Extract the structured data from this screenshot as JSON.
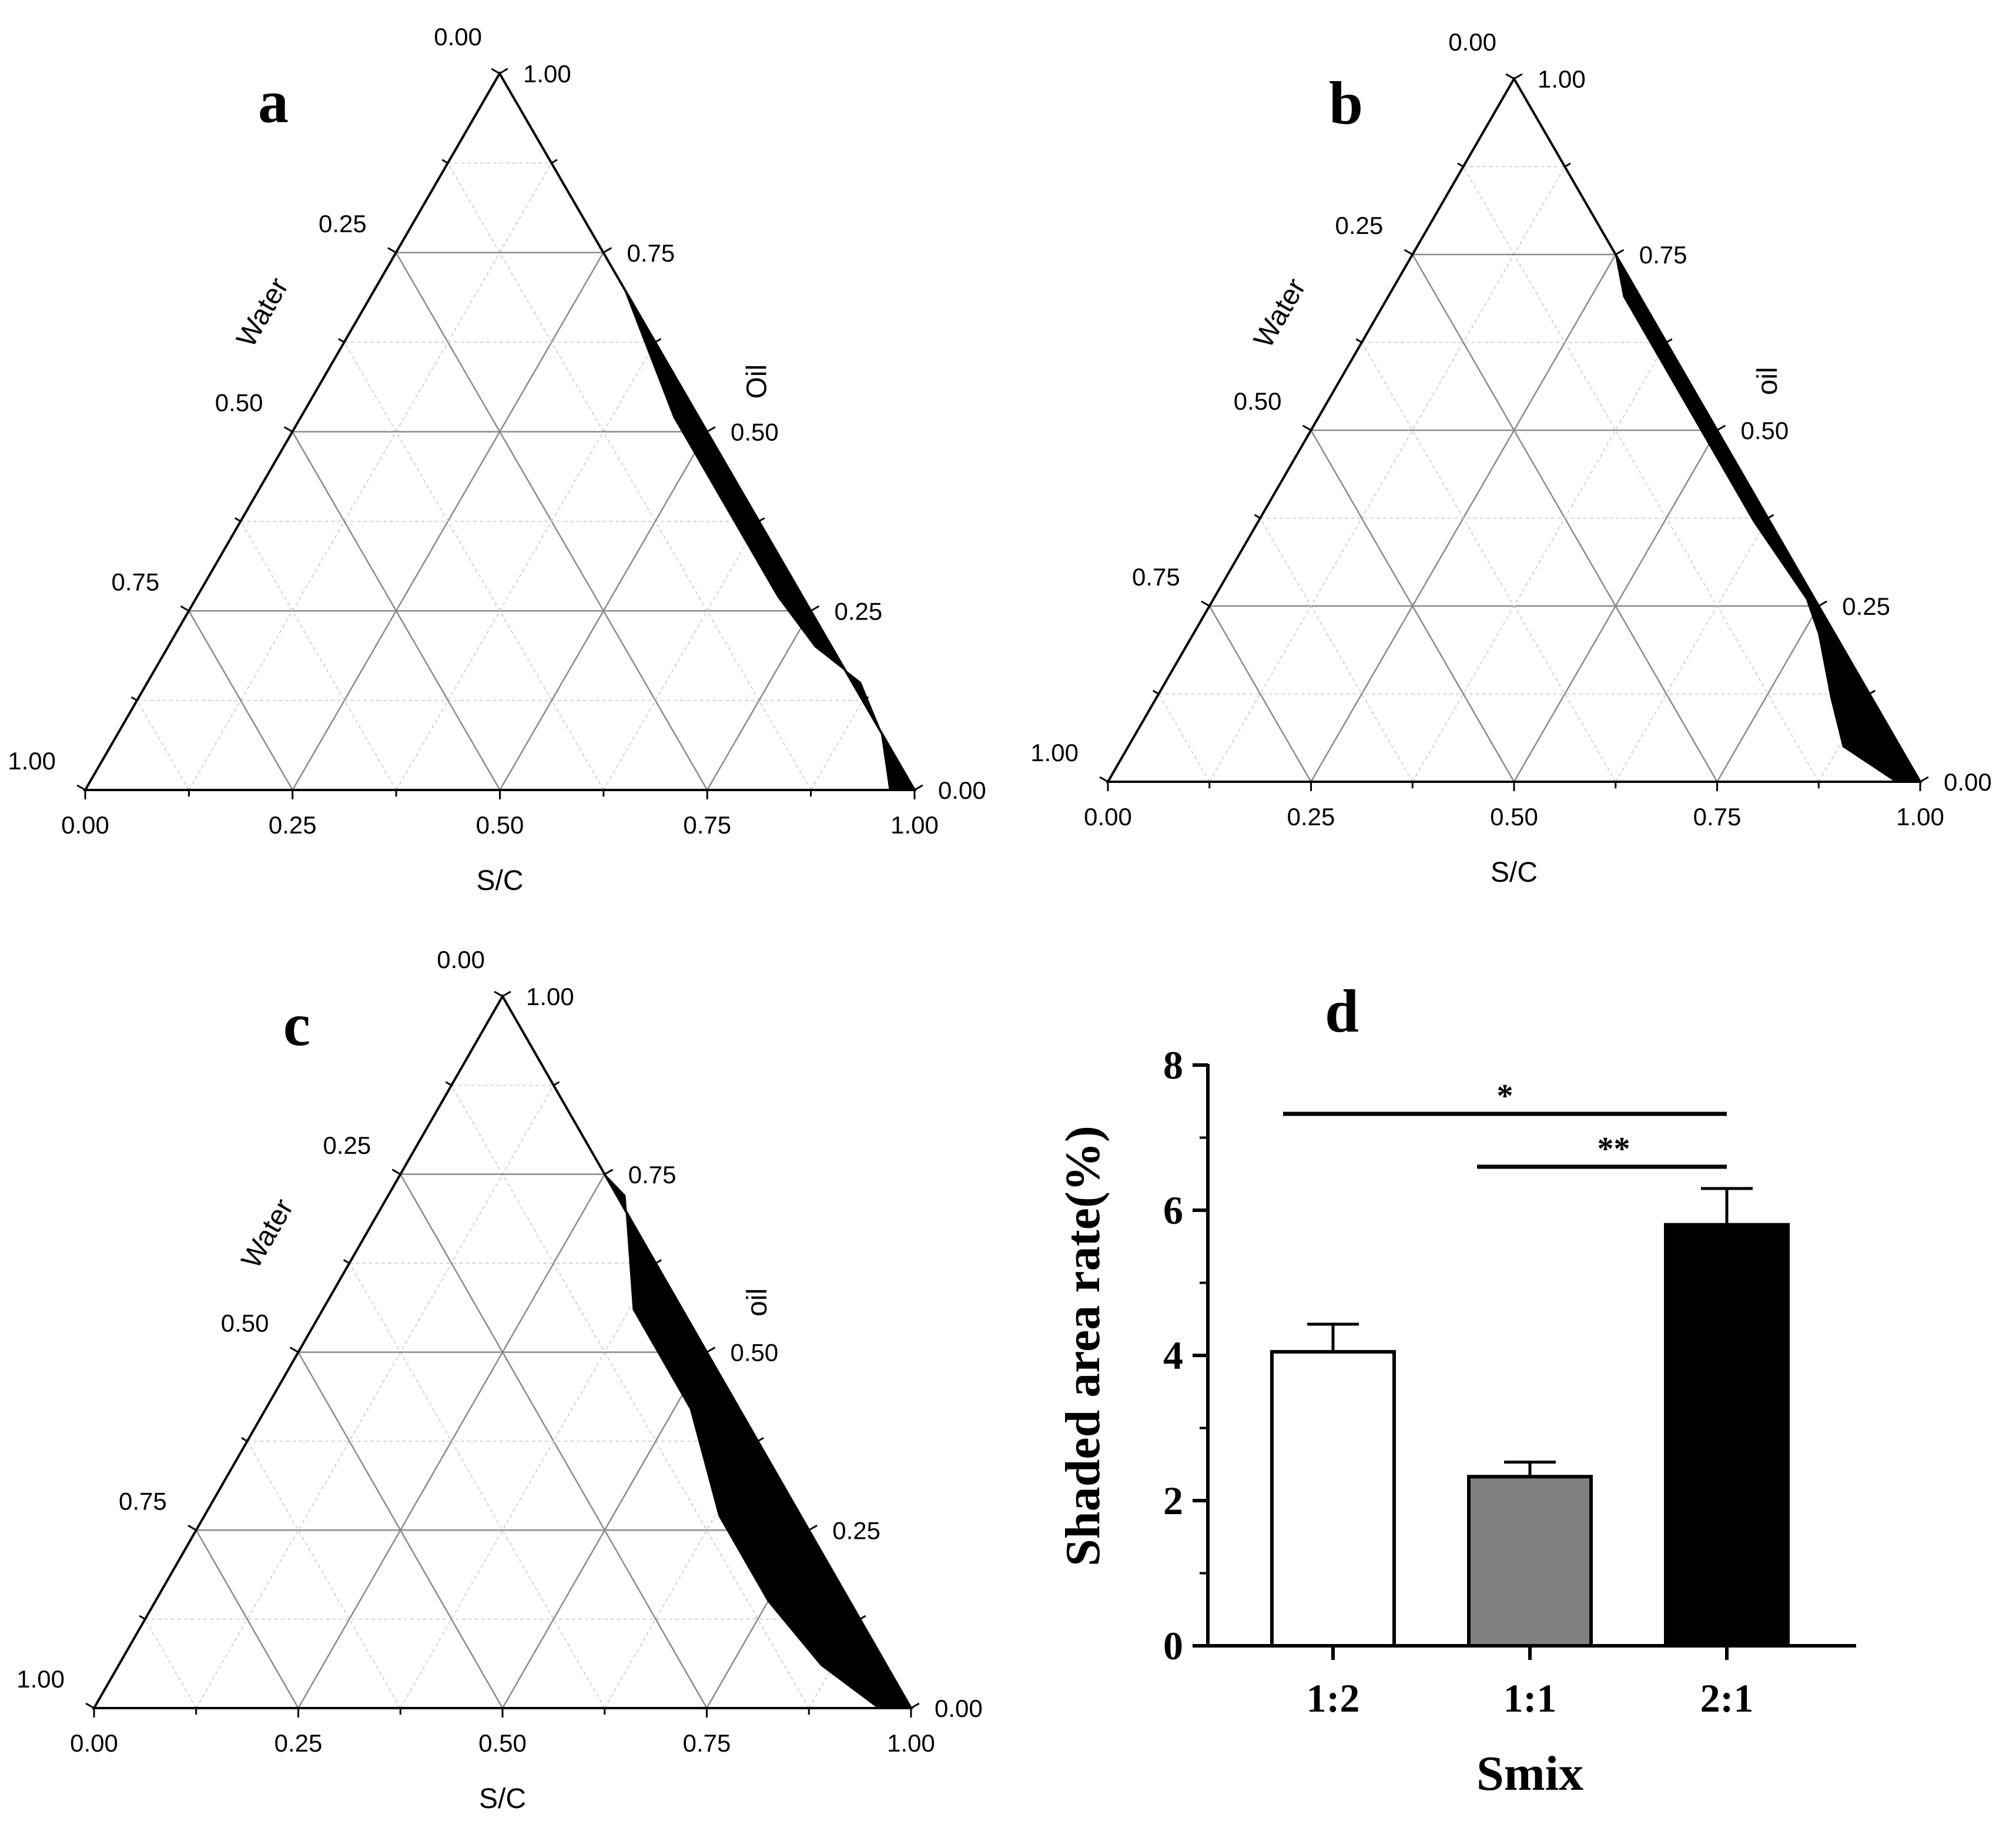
{
  "chart_data": [
    {
      "type": "ternary",
      "panel": "a",
      "axes": {
        "bottom": "S/C",
        "left": "Water",
        "right": "Oil"
      },
      "ticks": [
        "0.00",
        "0.25",
        "0.50",
        "0.75",
        "1.00"
      ],
      "region": {
        "name": "shaded area",
        "outer": [
          [
            0.25,
            0.75
          ],
          [
            0.5,
            0.5
          ],
          [
            0.75,
            0.25
          ],
          [
            0.875,
            0.125
          ],
          [
            1.0,
            0.0
          ]
        ],
        "inner": [
          [
            0.97,
            0.0
          ],
          [
            0.92,
            0.08
          ],
          [
            0.86,
            0.15
          ],
          [
            0.78,
            0.2
          ],
          [
            0.7,
            0.27
          ],
          [
            0.56,
            0.41
          ],
          [
            0.45,
            0.52
          ],
          [
            0.3,
            0.7
          ],
          [
            0.25,
            0.75
          ]
        ]
      }
    },
    {
      "type": "ternary",
      "panel": "b",
      "axes": {
        "bottom": "S/C",
        "left": "Water",
        "right": "oil"
      },
      "ticks": [
        "0.00",
        "0.25",
        "0.50",
        "0.75",
        "1.00"
      ],
      "region": {
        "name": "shaded area",
        "outer": [
          [
            0.25,
            0.75
          ],
          [
            0.5,
            0.5
          ],
          [
            0.75,
            0.25
          ],
          [
            0.875,
            0.125
          ],
          [
            1.0,
            0.0
          ]
        ],
        "inner": [
          [
            0.97,
            0.0
          ],
          [
            0.88,
            0.05
          ],
          [
            0.83,
            0.12
          ],
          [
            0.77,
            0.21
          ],
          [
            0.73,
            0.26
          ],
          [
            0.61,
            0.37
          ],
          [
            0.53,
            0.45
          ],
          [
            0.37,
            0.61
          ],
          [
            0.29,
            0.69
          ],
          [
            0.25,
            0.75
          ]
        ]
      }
    },
    {
      "type": "ternary",
      "panel": "c",
      "axes": {
        "bottom": "S/C",
        "left": "Water",
        "right": "oil"
      },
      "ticks": [
        "0.00",
        "0.25",
        "0.50",
        "0.75",
        "1.00"
      ],
      "region": {
        "name": "shaded area",
        "outer": [
          [
            0.25,
            0.75
          ],
          [
            0.5,
            0.5
          ],
          [
            0.75,
            0.25
          ],
          [
            0.875,
            0.125
          ],
          [
            1.0,
            0.0
          ]
        ],
        "inner": [
          [
            0.96,
            0.0
          ],
          [
            0.86,
            0.06
          ],
          [
            0.75,
            0.15
          ],
          [
            0.63,
            0.27
          ],
          [
            0.52,
            0.42
          ],
          [
            0.38,
            0.56
          ],
          [
            0.29,
            0.72
          ],
          [
            0.25,
            0.75
          ]
        ]
      }
    },
    {
      "type": "bar",
      "panel": "d",
      "title": "",
      "xlabel": "Smix",
      "ylabel": "Shaded area rate(%)",
      "categories": [
        "1:2",
        "1:1",
        "2:1"
      ],
      "values": [
        4.05,
        2.33,
        5.8
      ],
      "errors": [
        0.38,
        0.2,
        0.5
      ],
      "colors": [
        "#ffffff",
        "#808080",
        "#000000"
      ],
      "ylim": [
        0,
        8
      ],
      "yticks": [
        "0",
        "2",
        "4",
        "6",
        "8"
      ],
      "significance": [
        {
          "from": "1:2",
          "to": "2:1",
          "label": "*"
        },
        {
          "from": "1:1",
          "to": "2:1",
          "label": "**"
        }
      ]
    }
  ]
}
